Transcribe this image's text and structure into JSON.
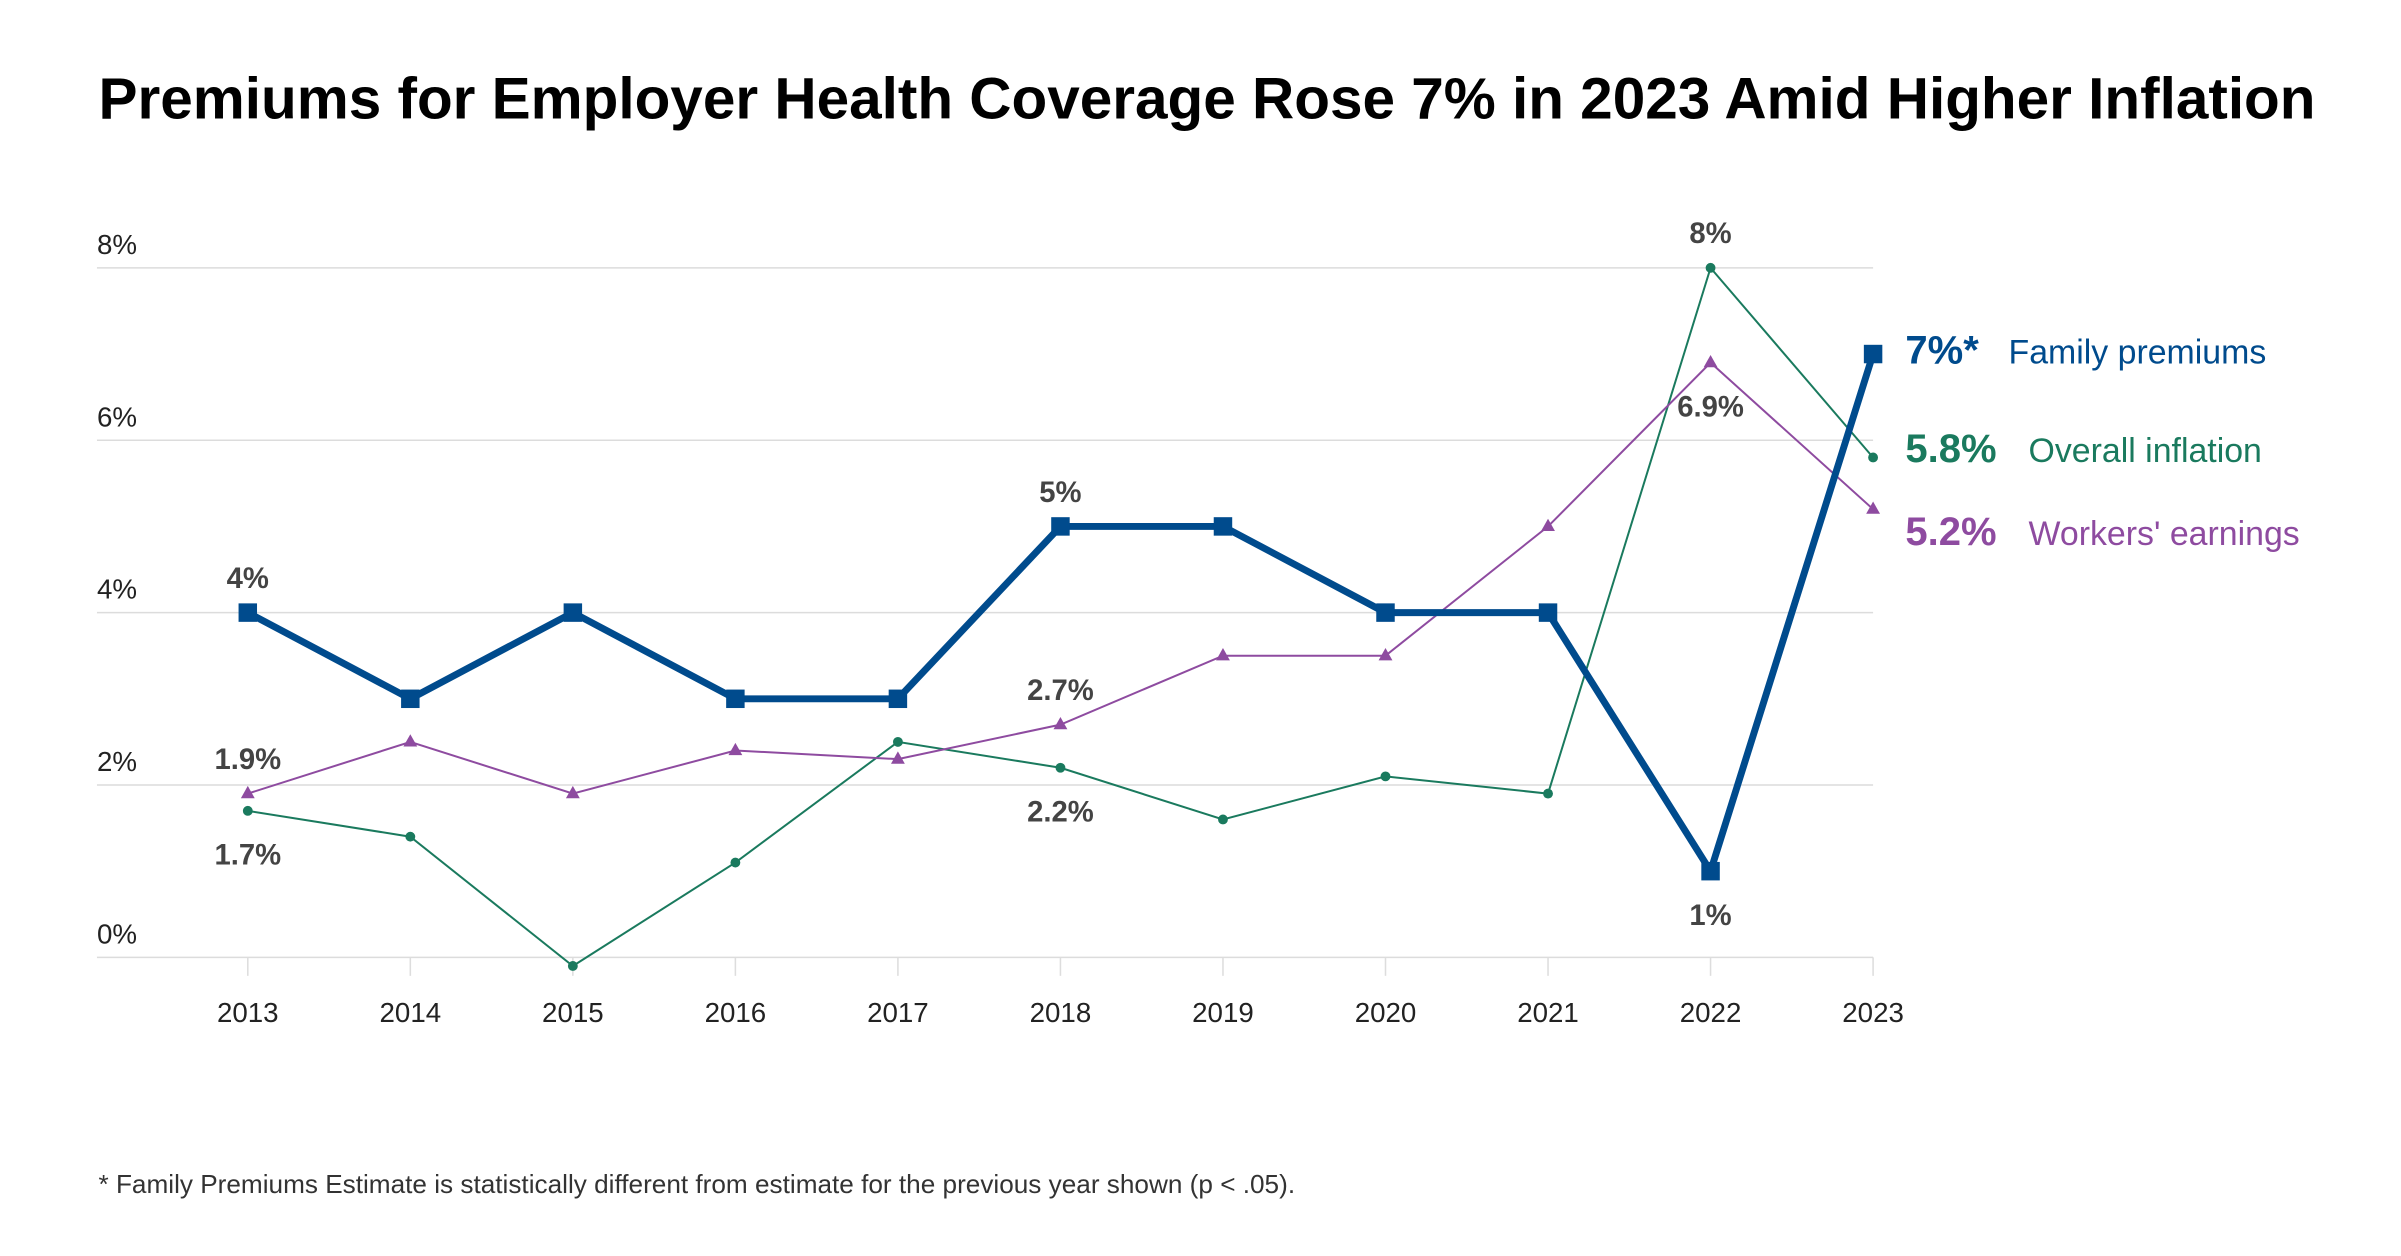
{
  "chart_data": {
    "type": "line",
    "title": "Premiums for Employer Health Coverage Rose 7% in 2023 Amid Higher Inflation",
    "xlabel": "",
    "ylabel": "",
    "x": [
      "2013",
      "2014",
      "2015",
      "2016",
      "2017",
      "2018",
      "2019",
      "2020",
      "2021",
      "2022",
      "2023"
    ],
    "ylim": [
      0,
      8
    ],
    "yticks": [
      0,
      2,
      4,
      6,
      8
    ],
    "ytick_labels": [
      "0%",
      "2%",
      "4%",
      "6%",
      "8%"
    ],
    "grid": true,
    "legend": "right (end-of-line labels)",
    "series": [
      {
        "name": "Family premiums",
        "end_label": "7%*",
        "color": "#004b8d",
        "marker": "square",
        "values": [
          4,
          3,
          4,
          3,
          3,
          5,
          5,
          4,
          4,
          1,
          7
        ]
      },
      {
        "name": "Overall inflation",
        "end_label": "5.8%",
        "color": "#1a7a5e",
        "marker": "circle",
        "values": [
          1.7,
          1.4,
          -0.1,
          1.1,
          2.5,
          2.2,
          1.6,
          2.1,
          1.9,
          8.0,
          5.8
        ]
      },
      {
        "name": "Workers' earnings",
        "end_label": "5.2%",
        "color": "#8e4ba0",
        "marker": "triangle",
        "values": [
          1.9,
          2.5,
          1.9,
          2.4,
          2.3,
          2.7,
          3.5,
          3.5,
          5.0,
          6.9,
          5.2
        ]
      }
    ],
    "annotations": [
      {
        "series": 0,
        "index": 0,
        "text": "4%",
        "pos": "above"
      },
      {
        "series": 2,
        "index": 0,
        "text": "1.9%",
        "pos": "above"
      },
      {
        "series": 1,
        "index": 0,
        "text": "1.7%",
        "pos": "below"
      },
      {
        "series": 0,
        "index": 5,
        "text": "5%",
        "pos": "above"
      },
      {
        "series": 2,
        "index": 5,
        "text": "2.7%",
        "pos": "above"
      },
      {
        "series": 1,
        "index": 5,
        "text": "2.2%",
        "pos": "below"
      },
      {
        "series": 1,
        "index": 9,
        "text": "8%",
        "pos": "above"
      },
      {
        "series": 2,
        "index": 9,
        "text": "6.9%",
        "pos": "below"
      },
      {
        "series": 0,
        "index": 9,
        "text": "1%",
        "pos": "below"
      }
    ]
  },
  "footnote": "* Family Premiums Estimate is statistically different from estimate for the previous year shown (p < .05)."
}
